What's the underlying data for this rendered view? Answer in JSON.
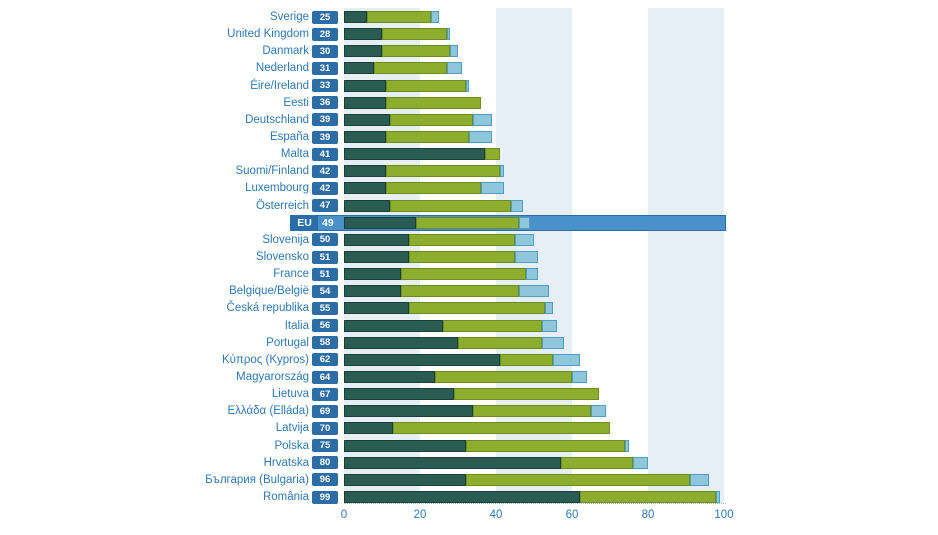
{
  "chart_data": {
    "type": "bar",
    "orientation": "horizontal-stacked",
    "title": "",
    "xlabel": "",
    "ylabel": "",
    "xlim": [
      0,
      100
    ],
    "x_ticks": [
      "0",
      "20",
      "40",
      "60",
      "80",
      "100"
    ],
    "grid": false,
    "legend": "none-visible",
    "background_bands": [
      [
        0,
        20
      ],
      [
        40,
        60
      ],
      [
        80,
        100
      ]
    ],
    "highlight_label": "EU",
    "series_names": [
      "dark-teal-segment",
      "olive-green-segment",
      "light-blue-segment"
    ],
    "rows": [
      {
        "label": "Sverige",
        "total": "25",
        "segments": [
          6,
          17,
          2
        ]
      },
      {
        "label": "United Kingdom",
        "total": "28",
        "segments": [
          10,
          17,
          1
        ]
      },
      {
        "label": "Danmark",
        "total": "30",
        "segments": [
          10,
          18,
          2
        ]
      },
      {
        "label": "Nederland",
        "total": "31",
        "segments": [
          8,
          19,
          4
        ]
      },
      {
        "label": "Éire/Ireland",
        "total": "33",
        "segments": [
          11,
          21,
          1
        ]
      },
      {
        "label": "Eesti",
        "total": "36",
        "segments": [
          11,
          25,
          0
        ]
      },
      {
        "label": "Deutschland",
        "total": "39",
        "segments": [
          12,
          22,
          5
        ]
      },
      {
        "label": "España",
        "total": "39",
        "segments": [
          11,
          22,
          6
        ]
      },
      {
        "label": "Malta",
        "total": "41",
        "segments": [
          37,
          4,
          0
        ]
      },
      {
        "label": "Suomi/Finland",
        "total": "42",
        "segments": [
          11,
          30,
          1
        ]
      },
      {
        "label": "Luxembourg",
        "total": "42",
        "segments": [
          11,
          25,
          6
        ]
      },
      {
        "label": "Österreich",
        "total": "47",
        "segments": [
          12,
          32,
          3
        ]
      },
      {
        "label": "EU",
        "total": "49",
        "segments": [
          19,
          27,
          3
        ]
      },
      {
        "label": "Slovenija",
        "total": "50",
        "segments": [
          17,
          28,
          5
        ]
      },
      {
        "label": "Slovensko",
        "total": "51",
        "segments": [
          17,
          28,
          6
        ]
      },
      {
        "label": "France",
        "total": "51",
        "segments": [
          15,
          33,
          3
        ]
      },
      {
        "label": "Belgique/België",
        "total": "54",
        "segments": [
          15,
          31,
          8
        ]
      },
      {
        "label": "Česká republika",
        "total": "55",
        "segments": [
          17,
          36,
          2
        ]
      },
      {
        "label": "Italia",
        "total": "56",
        "segments": [
          26,
          26,
          4
        ]
      },
      {
        "label": "Portugal",
        "total": "58",
        "segments": [
          30,
          22,
          6
        ]
      },
      {
        "label": "Κύπρος (Kypros)",
        "total": "62",
        "segments": [
          41,
          14,
          7
        ]
      },
      {
        "label": "Magyarország",
        "total": "64",
        "segments": [
          24,
          36,
          4
        ]
      },
      {
        "label": "Lietuva",
        "total": "67",
        "segments": [
          29,
          38,
          0
        ]
      },
      {
        "label": "Ελλάδα (Elláda)",
        "total": "69",
        "segments": [
          34,
          31,
          4
        ]
      },
      {
        "label": "Latvija",
        "total": "70",
        "segments": [
          13,
          57,
          0
        ]
      },
      {
        "label": "Polska",
        "total": "75",
        "segments": [
          32,
          42,
          1
        ]
      },
      {
        "label": "Hrvatska",
        "total": "80",
        "segments": [
          57,
          19,
          4
        ]
      },
      {
        "label": "България (Bulgaria)",
        "total": "96",
        "segments": [
          32,
          59,
          5
        ]
      },
      {
        "label": "România",
        "total": "99",
        "segments": [
          62,
          36,
          1
        ]
      }
    ],
    "colors": {
      "segment_fills": [
        "#2a5c53",
        "#8dad2f",
        "#8fc6dc"
      ],
      "segment_borders": [
        "#1a403a",
        "#6d8d20",
        "#4f9fc0"
      ],
      "background_band": "#e6eff5",
      "badge_fill": "#2d6da5",
      "badge_text": "#ffffff",
      "eu_band_fill": "#4a90c9",
      "eu_band_border": "#2a6da9",
      "eu_label_box": "#2a6da9",
      "label_text": "#2e79b5",
      "tick_text": "#2e79b5"
    }
  }
}
